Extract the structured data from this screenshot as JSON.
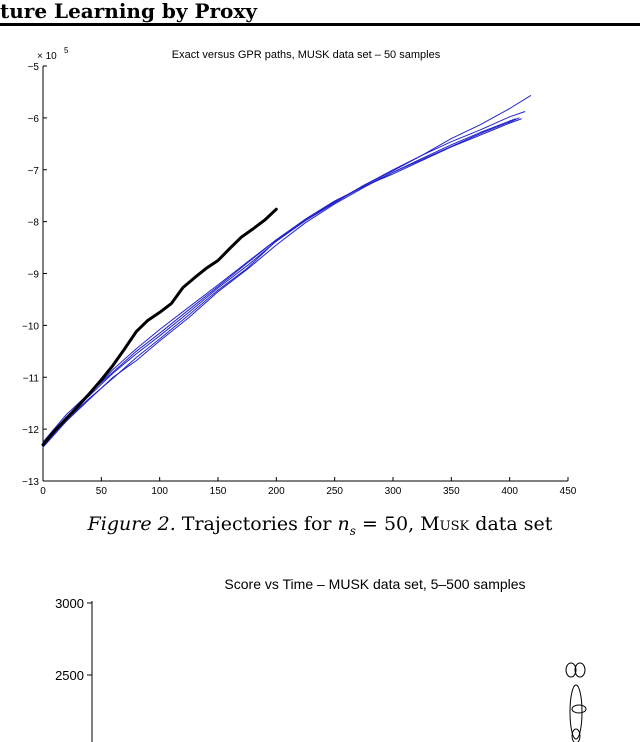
{
  "header": {
    "running_title": "ture Learning by Proxy"
  },
  "figure2": {
    "caption_label": "Figure 2.",
    "caption_prefix": "Trajectories for",
    "caption_var": "n",
    "caption_sub": "s",
    "caption_eq": "= 50,",
    "caption_dataset": "Musk",
    "caption_suffix": "data set"
  },
  "chart_data": [
    {
      "type": "line",
      "title": "Exact versus GPR paths, MUSK data set – 50 samples",
      "xlabel": "",
      "ylabel": "",
      "y_scale_label": "× 10",
      "y_scale_exponent": "5",
      "xlim": [
        0,
        450
      ],
      "ylim": [
        -13,
        -5
      ],
      "xticks": [
        0,
        50,
        100,
        150,
        200,
        250,
        300,
        350,
        400,
        450
      ],
      "yticks": [
        -5,
        -6,
        -7,
        -8,
        -9,
        -10,
        -11,
        -12,
        -13
      ],
      "grid": false,
      "colors": {
        "gpr": "#2222cc",
        "exact": "#000000"
      },
      "series": [
        {
          "color": "gpr",
          "width": 1,
          "x": [
            0,
            20,
            40,
            60,
            80,
            100,
            125,
            150,
            175,
            200,
            225,
            250,
            275,
            300,
            325,
            350,
            375,
            400,
            418
          ],
          "y": [
            -12.33,
            -11.82,
            -11.4,
            -11.02,
            -10.62,
            -10.26,
            -9.8,
            -9.32,
            -8.9,
            -8.37,
            -7.98,
            -7.64,
            -7.3,
            -7.02,
            -6.72,
            -6.4,
            -6.13,
            -5.82,
            -5.57
          ]
        },
        {
          "color": "gpr",
          "width": 1,
          "x": [
            0,
            20,
            40,
            60,
            80,
            100,
            125,
            150,
            175,
            200,
            225,
            250,
            275,
            300,
            325,
            350,
            375,
            400,
            410
          ],
          "y": [
            -12.3,
            -11.8,
            -11.32,
            -10.85,
            -10.45,
            -10.08,
            -9.65,
            -9.22,
            -8.78,
            -8.35,
            -7.95,
            -7.6,
            -7.32,
            -7.08,
            -6.82,
            -6.56,
            -6.33,
            -6.1,
            -6.02
          ]
        },
        {
          "color": "gpr",
          "width": 1,
          "x": [
            0,
            20,
            40,
            60,
            80,
            100,
            125,
            150,
            175,
            200,
            225,
            250,
            275,
            300,
            325,
            350,
            375,
            400,
            413
          ],
          "y": [
            -12.28,
            -11.76,
            -11.35,
            -10.92,
            -10.55,
            -10.2,
            -9.75,
            -9.28,
            -8.85,
            -8.38,
            -7.98,
            -7.62,
            -7.3,
            -7.0,
            -6.72,
            -6.46,
            -6.23,
            -5.98,
            -5.88
          ]
        },
        {
          "color": "gpr",
          "width": 1,
          "x": [
            0,
            20,
            40,
            60,
            80,
            100,
            125,
            150,
            175,
            200,
            225,
            250,
            275,
            300,
            325,
            350,
            375,
            400,
            405
          ],
          "y": [
            -12.35,
            -11.85,
            -11.42,
            -11.0,
            -10.68,
            -10.3,
            -9.85,
            -9.35,
            -8.92,
            -8.45,
            -8.02,
            -7.66,
            -7.34,
            -7.05,
            -6.78,
            -6.52,
            -6.28,
            -6.06,
            -6.02
          ]
        },
        {
          "color": "gpr",
          "width": 1,
          "x": [
            0,
            20,
            40,
            60,
            80,
            100,
            125,
            150,
            175,
            200,
            225,
            250,
            275,
            300,
            325,
            350,
            375,
            400,
            408
          ],
          "y": [
            -12.25,
            -11.72,
            -11.3,
            -10.9,
            -10.5,
            -10.15,
            -9.7,
            -9.25,
            -8.8,
            -8.35,
            -7.96,
            -7.62,
            -7.32,
            -7.05,
            -6.8,
            -6.55,
            -6.3,
            -6.08,
            -6.0
          ]
        },
        {
          "color": "exact",
          "width": 3,
          "x": [
            0,
            10,
            20,
            30,
            40,
            50,
            60,
            70,
            80,
            90,
            100,
            110,
            120,
            130,
            140,
            150,
            160,
            170,
            180,
            190,
            200
          ],
          "y": [
            -12.3,
            -12.03,
            -11.8,
            -11.56,
            -11.31,
            -11.05,
            -10.77,
            -10.45,
            -10.12,
            -9.9,
            -9.75,
            -9.58,
            -9.27,
            -9.08,
            -8.9,
            -8.75,
            -8.52,
            -8.3,
            -8.14,
            -7.97,
            -7.76
          ]
        }
      ]
    },
    {
      "type": "scatter",
      "title": "Score vs Time – MUSK data set, 5–500 samples",
      "xlabel": "",
      "ylabel": "",
      "yticks": [
        3000,
        2500
      ],
      "grid": false
    }
  ]
}
